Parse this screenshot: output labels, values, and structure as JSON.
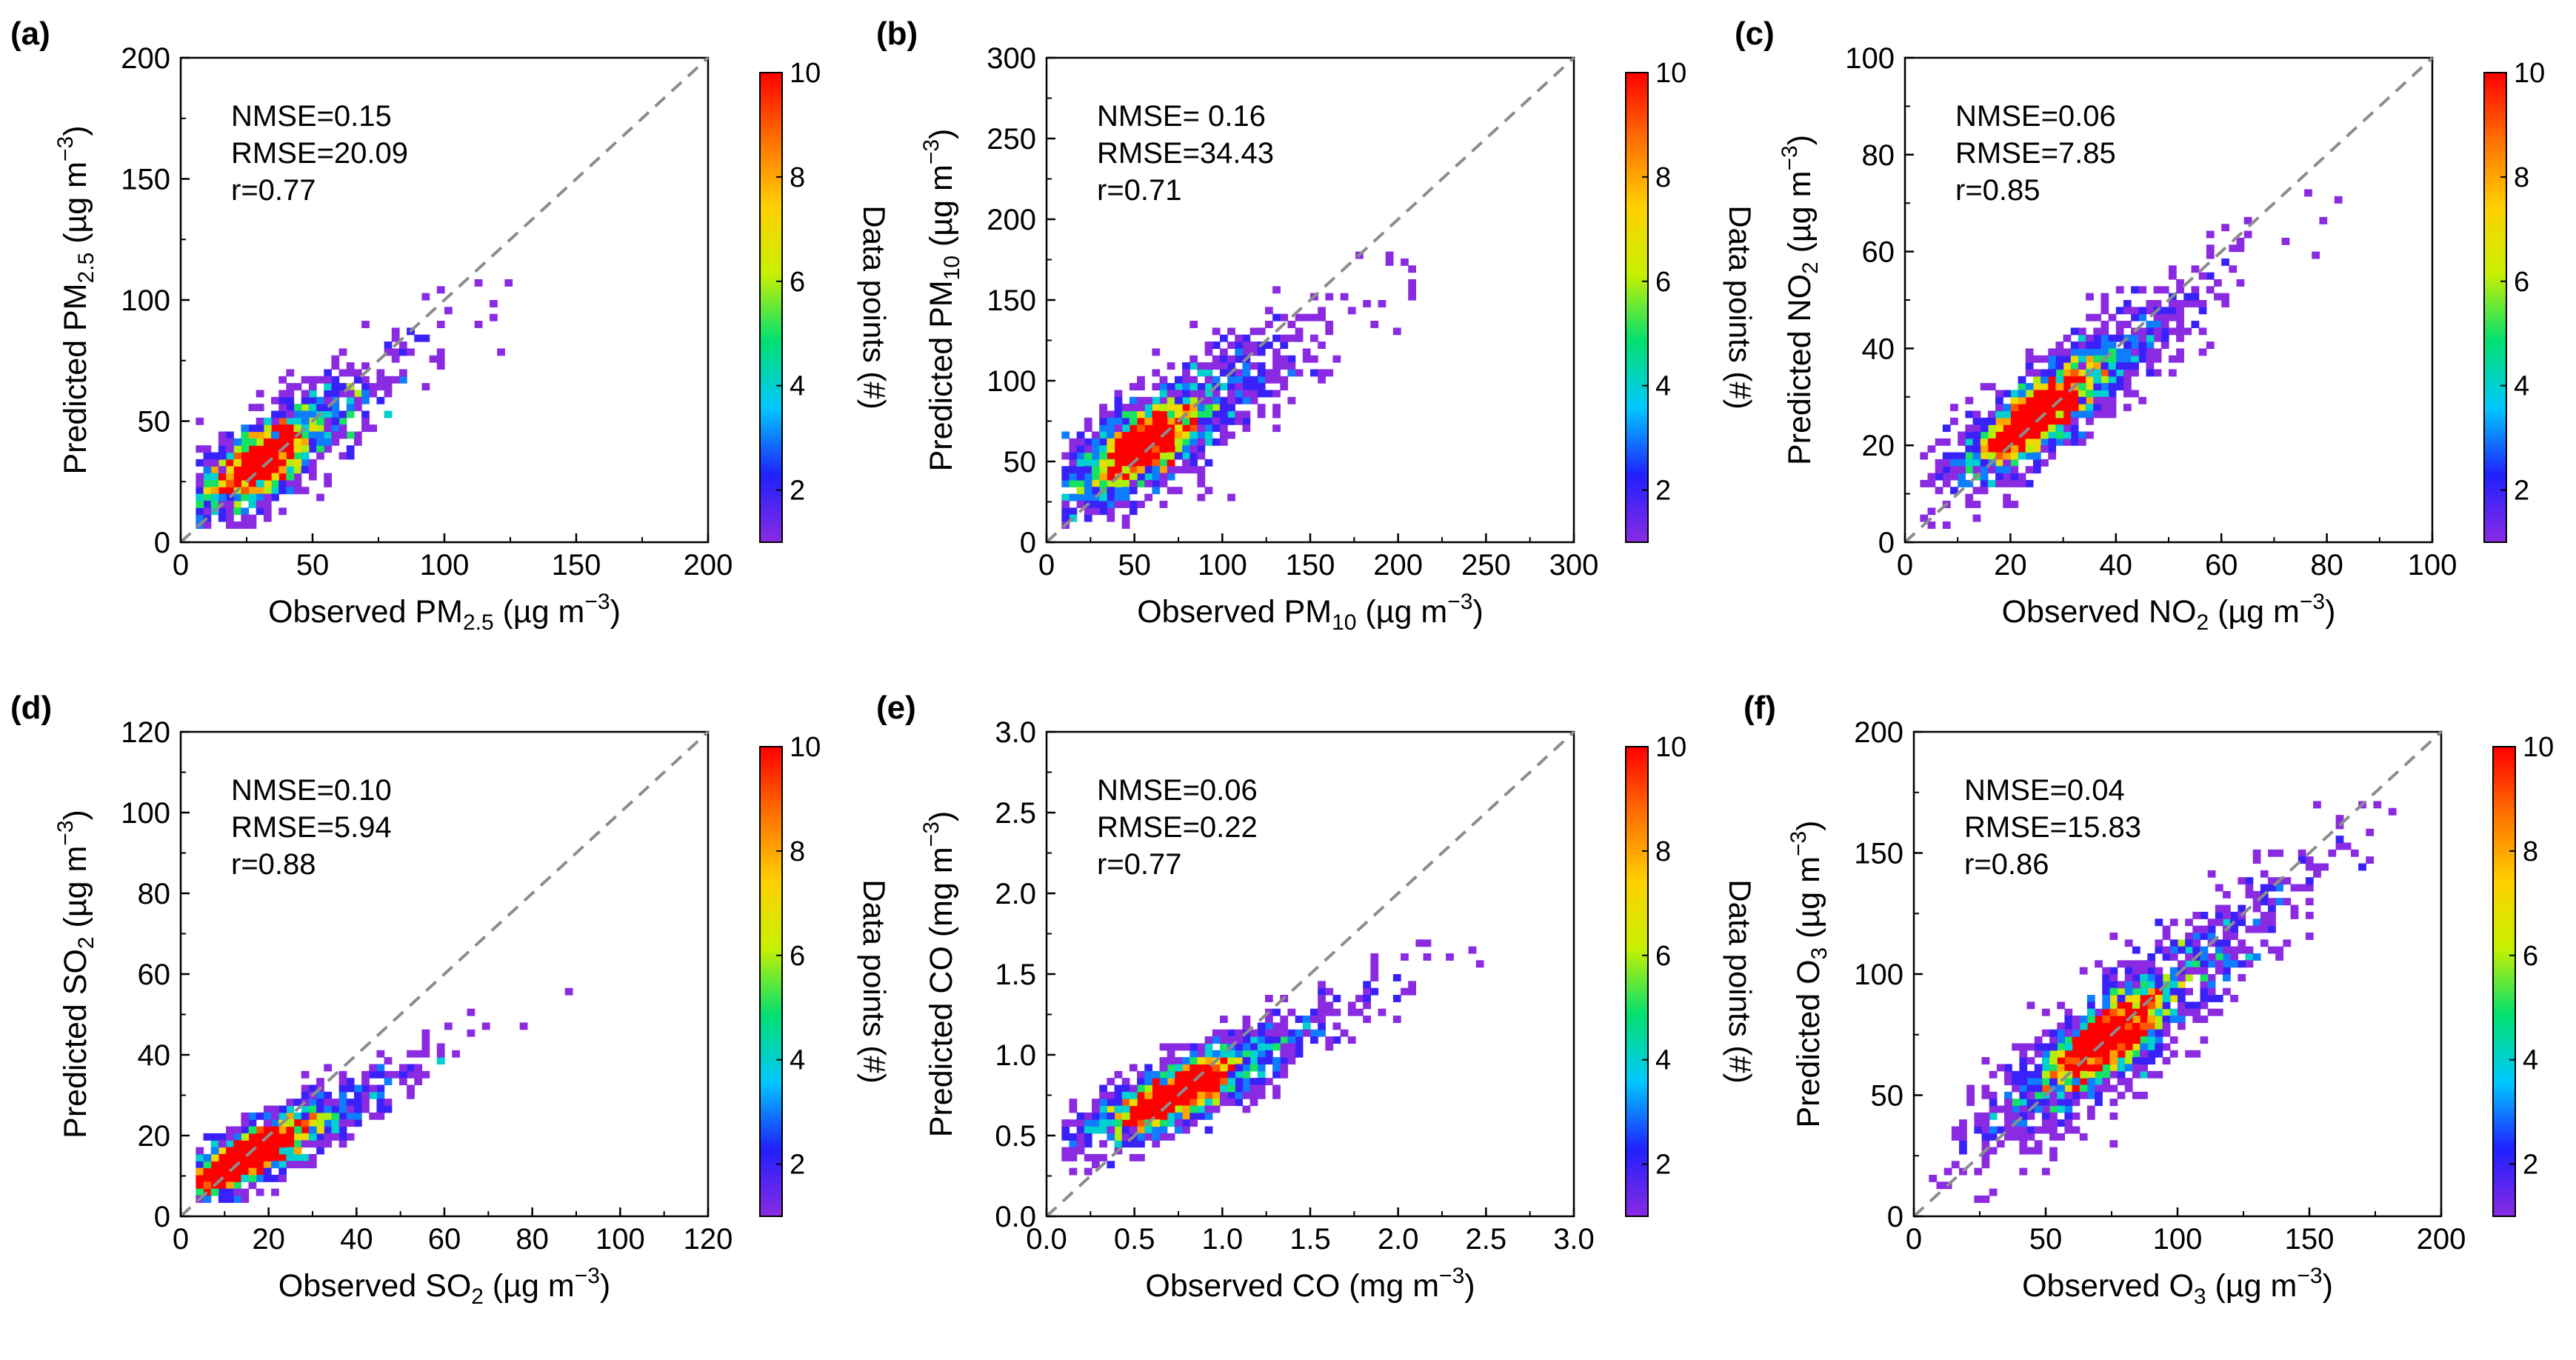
{
  "figure": {
    "description_free": true
  },
  "colorbar": {
    "label": "Data points (#)",
    "min": 1,
    "max": 10,
    "ticks": [
      "2",
      "4",
      "6",
      "8",
      "10"
    ],
    "tick_values": [
      2,
      4,
      6,
      8,
      10
    ],
    "colors": [
      "#8a2be2",
      "#2020ff",
      "#00c8ff",
      "#00e070",
      "#c8f000",
      "#ffd000",
      "#ff7000",
      "#ff0000"
    ]
  },
  "chart_data": [
    {
      "type": "heatmap",
      "panel_label": "(a)",
      "xlabel_pre": "Observed PM",
      "xlabel_sub": "2.5",
      "xlabel_post": " (µg m",
      "ylabel_pre": "Predicted PM",
      "ylabel_sub": "2.5",
      "ylabel_post": " (µg m",
      "unit_sup": "−3",
      "close_paren": ")",
      "xlim": [
        0,
        200
      ],
      "ylim": [
        0,
        200
      ],
      "xticks": [
        "0",
        "50",
        "100",
        "150",
        "200"
      ],
      "yticks": [
        "0",
        "50",
        "100",
        "150",
        "200"
      ],
      "stats": [
        "NMSE=0.15",
        "RMSE=20.09",
        "r=0.77"
      ],
      "diagonal": "1:1 line",
      "cloud": {
        "cx": 30,
        "cy": 33,
        "slope": 0.78,
        "sd_along": 24,
        "sd_across": 8,
        "tail_max": 195,
        "n": 900
      }
    },
    {
      "type": "heatmap",
      "panel_label": "(b)",
      "xlabel_pre": "Observed PM",
      "xlabel_sub": "10",
      "xlabel_post": " (µg m",
      "ylabel_pre": "Predicted PM",
      "ylabel_sub": "10",
      "ylabel_post": " (µg m",
      "unit_sup": "−3",
      "close_paren": ")",
      "xlim": [
        0,
        300
      ],
      "ylim": [
        0,
        300
      ],
      "xticks": [
        "0",
        "50",
        "100",
        "150",
        "200",
        "250",
        "300"
      ],
      "yticks": [
        "0",
        "50",
        "100",
        "150",
        "200",
        "250",
        "300"
      ],
      "stats": [
        "NMSE= 0.16",
        "RMSE=34.43",
        "r=0.71"
      ],
      "diagonal": "1:1 line",
      "cloud": {
        "cx": 55,
        "cy": 60,
        "slope": 0.72,
        "sd_along": 40,
        "sd_across": 14,
        "tail_max": 295,
        "n": 1000
      }
    },
    {
      "type": "heatmap",
      "panel_label": "(c)",
      "xlabel_pre": "Observed NO",
      "xlabel_sub": "2",
      "xlabel_post": " (µg m",
      "ylabel_pre": "Predicted NO",
      "ylabel_sub": "2",
      "ylabel_post": " (µg m",
      "unit_sup": "−3",
      "close_paren": ")",
      "xlim": [
        0,
        100
      ],
      "ylim": [
        0,
        100
      ],
      "xticks": [
        "0",
        "20",
        "40",
        "60",
        "80",
        "100"
      ],
      "yticks": [
        "0",
        "20",
        "40",
        "60",
        "80",
        "100"
      ],
      "stats": [
        "NMSE=0.06",
        "RMSE=7.85",
        "r=0.85"
      ],
      "diagonal": "1:1 line",
      "cloud": {
        "cx": 25,
        "cy": 26,
        "slope": 0.85,
        "sd_along": 14,
        "sd_across": 4,
        "tail_max": 94,
        "n": 1100
      }
    },
    {
      "type": "heatmap",
      "panel_label": "(d)",
      "xlabel_pre": "Observed SO",
      "xlabel_sub": "2",
      "xlabel_post": " (µg m",
      "ylabel_pre": "Predicted SO",
      "ylabel_sub": "2",
      "ylabel_post": " (µg m",
      "unit_sup": "−3",
      "close_paren": ")",
      "xlim": [
        0,
        120
      ],
      "ylim": [
        0,
        120
      ],
      "xticks": [
        "0",
        "20",
        "40",
        "60",
        "80",
        "100",
        "120"
      ],
      "yticks": [
        "0",
        "20",
        "40",
        "60",
        "80",
        "100",
        "120"
      ],
      "stats": [
        "NMSE=0.10",
        "RMSE=5.94",
        "r=0.88"
      ],
      "diagonal": "1:1 line",
      "cloud": {
        "cx": 14,
        "cy": 14,
        "slope": 0.6,
        "sd_along": 14,
        "sd_across": 3.5,
        "tail_max": 90,
        "n": 1000
      }
    },
    {
      "type": "heatmap",
      "panel_label": "(e)",
      "xlabel_pre": "Observed CO",
      "xlabel_sub": "",
      "xlabel_post": " (mg m",
      "ylabel_pre": "Predicted CO",
      "ylabel_sub": "",
      "ylabel_post": " (mg m",
      "unit_sup": "−3",
      "close_paren": ")",
      "xlim": [
        0,
        3
      ],
      "ylim": [
        0,
        3
      ],
      "xticks": [
        "0.0",
        "0.5",
        "1.0",
        "1.5",
        "2.0",
        "2.5",
        "3.0"
      ],
      "yticks": [
        "0.0",
        "0.5",
        "1.0",
        "1.5",
        "2.0",
        "2.5",
        "3.0"
      ],
      "stats": [
        "NMSE=0.06",
        "RMSE=0.22",
        "r=0.77"
      ],
      "diagonal": "1:1 line",
      "cloud": {
        "cx": 0.72,
        "cy": 0.75,
        "slope": 0.55,
        "sd_along": 0.38,
        "sd_across": 0.1,
        "tail_max": 2.95,
        "n": 1000
      }
    },
    {
      "type": "heatmap",
      "panel_label": "(f)",
      "xlabel_pre": "Observed O",
      "xlabel_sub": "3",
      "xlabel_post": " (µg m",
      "ylabel_pre": "Predicted O",
      "ylabel_sub": "3",
      "ylabel_post": " (µg m",
      "unit_sup": "−3",
      "close_paren": ")",
      "xlim": [
        0,
        200
      ],
      "ylim": [
        0,
        200
      ],
      "xticks": [
        "0",
        "50",
        "100",
        "150",
        "200"
      ],
      "yticks": [
        "0",
        "50",
        "100",
        "150",
        "200"
      ],
      "stats": [
        "NMSE=0.04",
        "RMSE=15.83",
        "r=0.86"
      ],
      "diagonal": "1:1 line",
      "cloud": {
        "cx": 72,
        "cy": 72,
        "slope": 0.9,
        "sd_along": 32,
        "sd_across": 9,
        "tail_max": 195,
        "n": 1200
      }
    }
  ]
}
